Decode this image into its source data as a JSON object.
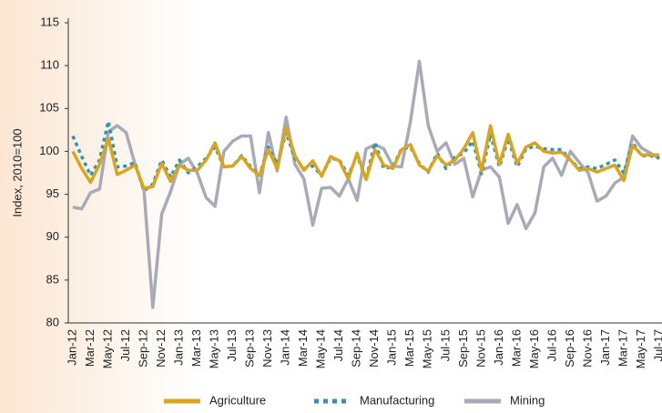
{
  "chart_data": {
    "type": "line",
    "y_label": "Index, 2010=100",
    "categories": [
      "Jan-12",
      null,
      "Mar-12",
      null,
      "May-12",
      null,
      "Jul-12",
      null,
      "Sep-12",
      null,
      "Nov-12",
      null,
      "Jan-13",
      null,
      "Mar-13",
      null,
      "May-13",
      null,
      "Jul-13",
      null,
      "Sep-13",
      null,
      "Nov-13",
      null,
      "Jan-14",
      null,
      "Mar-14",
      null,
      "May-14",
      null,
      "Jul-14",
      null,
      "Sep-14",
      null,
      "Nov-14",
      null,
      "Jan-15",
      null,
      "Mar-15",
      null,
      "May-15",
      null,
      "Jul-15",
      null,
      "Sep-15",
      null,
      "Nov-15",
      null,
      "Jan-16",
      null,
      "Mar-16",
      null,
      "May-16",
      null,
      "Jul-16",
      null,
      "Sep-16",
      null,
      "Nov-16",
      null,
      "Jan-17",
      null,
      "Mar-17",
      null,
      "May-17",
      null,
      "Jul-17"
    ],
    "series": [
      {
        "name": "Agriculture",
        "color": "#d9a520",
        "style": "solid",
        "values": [
          100,
          98,
          96.4,
          98.5,
          101.5,
          97.3,
          97.8,
          98.4,
          95.7,
          95.9,
          98.6,
          96.5,
          98.4,
          97.8,
          97.8,
          99,
          101,
          98.2,
          98.3,
          99.4,
          98,
          97.2,
          100.2,
          98,
          102.8,
          99.5,
          97.8,
          98.9,
          97.1,
          99.4,
          98.9,
          96.8,
          99.8,
          96.7,
          100.2,
          98.4,
          98,
          100.2,
          100.8,
          98.4,
          97.7,
          99.5,
          98.4,
          99,
          100.3,
          102.2,
          97.7,
          103,
          98.5,
          102,
          98.6,
          100.5,
          101,
          100,
          99.8,
          99.9,
          99,
          97.8,
          98,
          97.6,
          98,
          98.4,
          96.6,
          100.7,
          99.6,
          99.6,
          99.6
        ]
      },
      {
        "name": "Manufacturing",
        "color": "#2e93b8",
        "style": "dotted",
        "values": [
          101.8,
          99.4,
          97.2,
          99,
          103.5,
          98.2,
          98.3,
          98.7,
          95.4,
          96.2,
          99,
          97,
          99,
          97.5,
          98.2,
          99.2,
          100.5,
          98.2,
          98.3,
          99.5,
          98.2,
          97.2,
          100.5,
          98.5,
          102.2,
          99.2,
          98,
          98.3,
          97.2,
          99.2,
          99,
          97.2,
          99.5,
          96.8,
          101,
          98,
          98.2,
          100.3,
          100.5,
          98.6,
          97.6,
          99.8,
          98,
          99.3,
          99.8,
          101.2,
          97.4,
          102,
          98.2,
          101.5,
          98.2,
          100.3,
          100.6,
          100.3,
          100.2,
          100.2,
          99,
          98,
          98.2,
          98,
          98.5,
          99,
          97.5,
          101,
          99.5,
          99.5,
          99.2
        ]
      },
      {
        "name": "Mining",
        "color": "#a9aab8",
        "style": "solid",
        "values": [
          93.5,
          93.3,
          95.2,
          95.6,
          102.3,
          103,
          102.2,
          98.5,
          95.5,
          81.8,
          92.7,
          95.3,
          98.5,
          99.2,
          97.5,
          94.6,
          93.6,
          100,
          101.2,
          101.8,
          101.8,
          95.2,
          102.2,
          97.7,
          104,
          98.5,
          96.8,
          91.4,
          95.7,
          95.8,
          94.8,
          96.8,
          94.3,
          100.3,
          100.8,
          100.3,
          98.3,
          98.2,
          103.5,
          110.5,
          103,
          100,
          101,
          98.5,
          99.2,
          94.7,
          97.8,
          98.2,
          97,
          91.6,
          93.8,
          91,
          92.8,
          98.2,
          99.2,
          97.2,
          100,
          98.7,
          97.5,
          94.2,
          94.8,
          96.3,
          97,
          101.8,
          100.4,
          99.8,
          99.2
        ]
      }
    ],
    "ylim": [
      80,
      115
    ],
    "yticks": [
      80,
      85,
      90,
      95,
      100,
      105,
      110,
      115
    ],
    "grid": false,
    "legend": "bottom"
  }
}
